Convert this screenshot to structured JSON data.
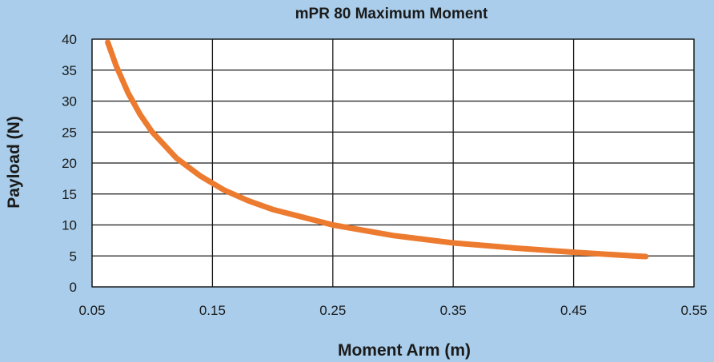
{
  "chart_data": {
    "type": "line",
    "title": "mPR 80 Maximum Moment",
    "xlabel": "Moment Arm (m)",
    "ylabel": "Payload (N)",
    "xlim": [
      0.05,
      0.55
    ],
    "ylim": [
      0,
      40
    ],
    "xticks": [
      "0.05",
      "0.15",
      "0.25",
      "0.35",
      "0.45",
      "0.55"
    ],
    "yticks": [
      "0",
      "5",
      "10",
      "15",
      "20",
      "25",
      "30",
      "35",
      "40"
    ],
    "grid": true,
    "series": [
      {
        "color": "#ec7b30",
        "x": [
          0.063,
          0.07,
          0.08,
          0.09,
          0.1,
          0.12,
          0.14,
          0.16,
          0.18,
          0.2,
          0.25,
          0.3,
          0.35,
          0.4,
          0.45,
          0.5,
          0.51
        ],
        "y": [
          39.5,
          35.7,
          31.3,
          27.8,
          25.0,
          20.8,
          17.9,
          15.6,
          13.9,
          12.5,
          10.0,
          8.3,
          7.1,
          6.3,
          5.6,
          5.0,
          4.9
        ]
      }
    ]
  },
  "colors": {
    "background": "#a9cdea",
    "plot_area": "#ffffff",
    "grid": "#1a1a1a",
    "series": "#ec7b30"
  }
}
